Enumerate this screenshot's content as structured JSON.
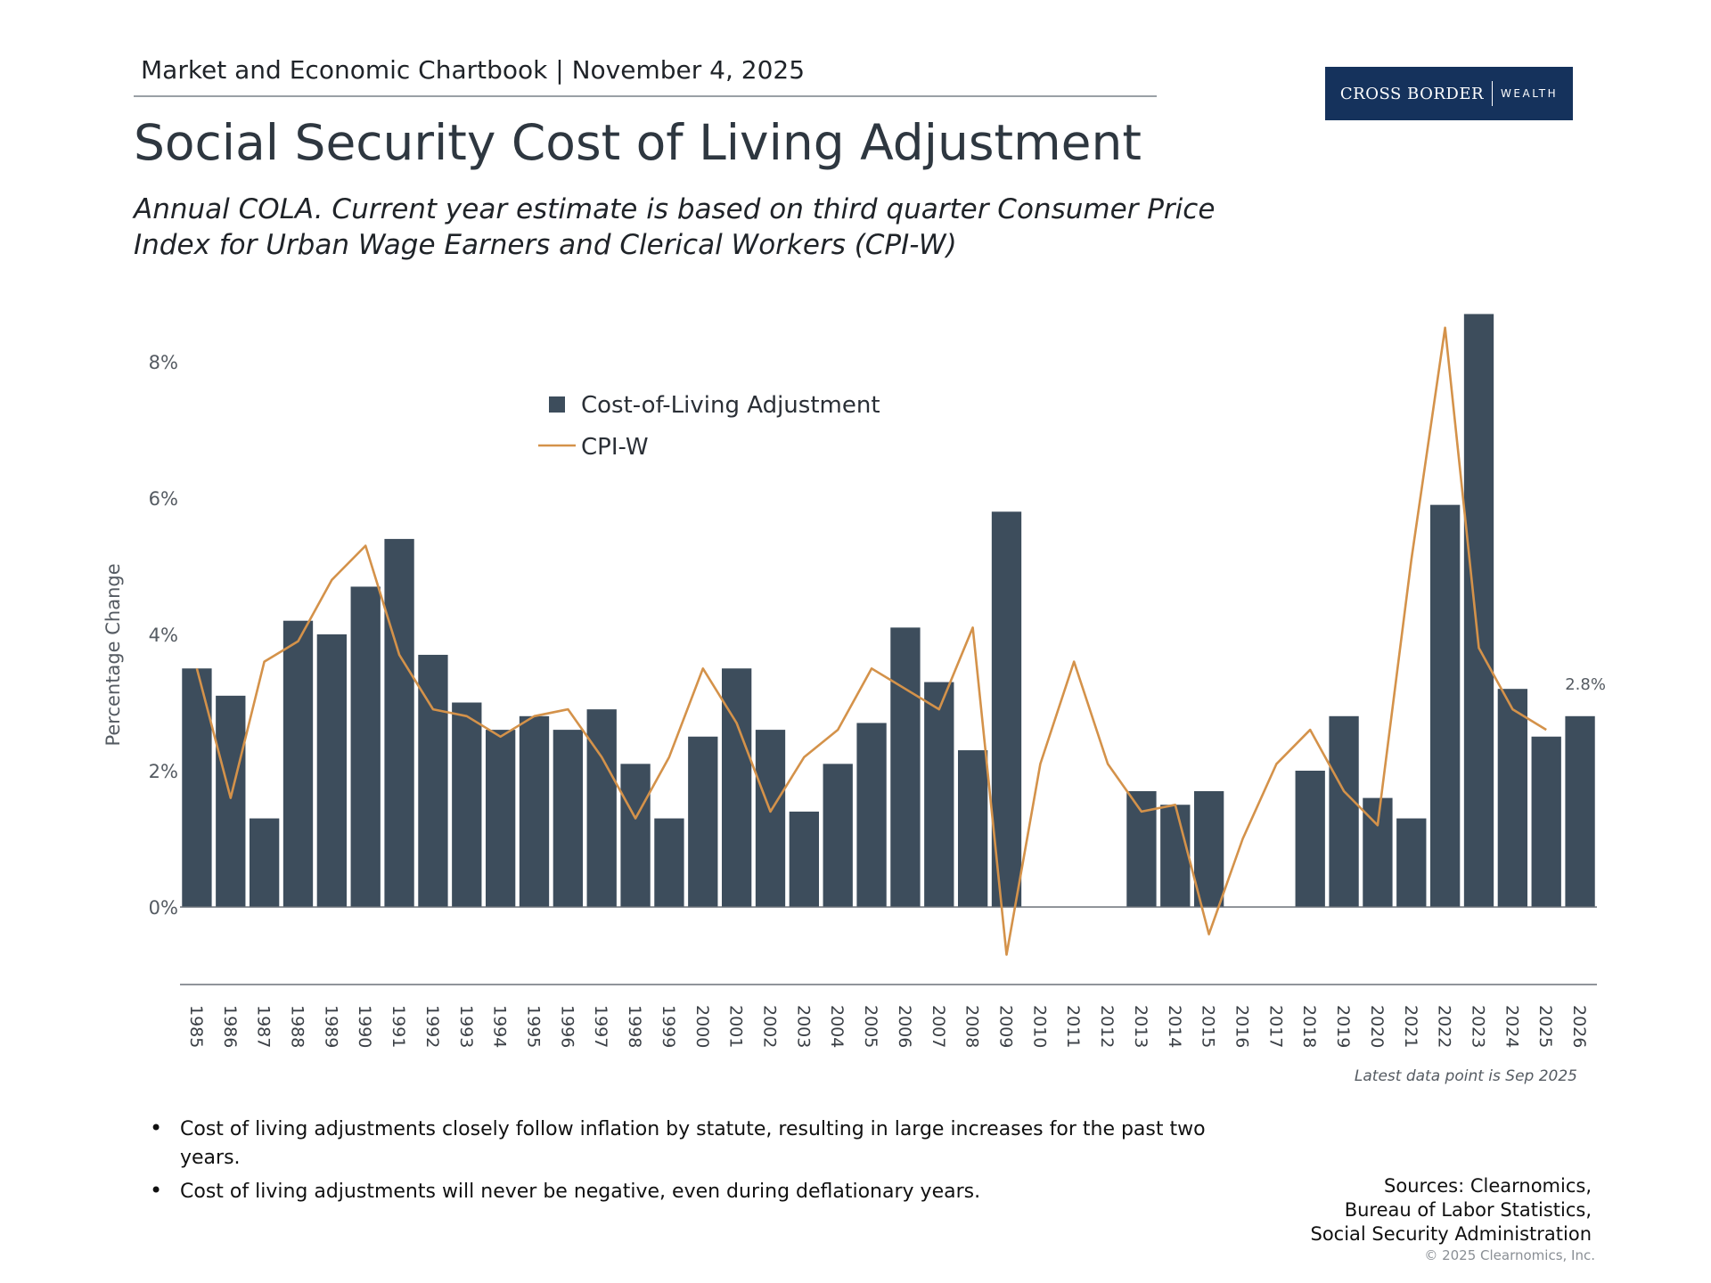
{
  "header": {
    "label": "Market and Economic Chartbook | November 4, 2025"
  },
  "logo": {
    "main": "CROSS BORDER",
    "sub": "WEALTH",
    "color": "#15325c"
  },
  "title": "Social Security Cost of Living Adjustment",
  "subtitle_line1": "Annual COLA. Current year estimate is based on third quarter Consumer Price",
  "subtitle_line2": "Index for Urban Wage Earners and Clerical Workers (CPI-W)",
  "chart_data": {
    "type": "bar",
    "title": "Social Security Cost of Living Adjustment",
    "xlabel": "",
    "ylabel": "Percentage Change",
    "ylim": [
      -1.2,
      8.8
    ],
    "yticks": [
      {
        "value": 0,
        "label": "0%"
      },
      {
        "value": 2,
        "label": "2%"
      },
      {
        "value": 4,
        "label": "4%"
      },
      {
        "value": 6,
        "label": "6%"
      },
      {
        "value": 8,
        "label": "8%"
      }
    ],
    "categories": [
      "1985",
      "1986",
      "1987",
      "1988",
      "1989",
      "1990",
      "1991",
      "1992",
      "1993",
      "1994",
      "1995",
      "1996",
      "1997",
      "1998",
      "1999",
      "2000",
      "2001",
      "2002",
      "2003",
      "2004",
      "2005",
      "2006",
      "2007",
      "2008",
      "2009",
      "2010",
      "2011",
      "2012",
      "2013",
      "2014",
      "2015",
      "2016",
      "2017",
      "2018",
      "2019",
      "2020",
      "2021",
      "2022",
      "2023",
      "2024",
      "2025",
      "2026"
    ],
    "series": [
      {
        "name": "Cost-of-Living Adjustment",
        "type": "bar",
        "color": "#3d4d5c",
        "values": [
          3.5,
          3.1,
          1.3,
          4.2,
          4.0,
          4.7,
          5.4,
          3.7,
          3.0,
          2.6,
          2.8,
          2.6,
          2.9,
          2.1,
          1.3,
          2.5,
          3.5,
          2.6,
          1.4,
          2.1,
          2.7,
          4.1,
          3.3,
          2.3,
          5.8,
          0.0,
          0.0,
          0.0,
          1.7,
          1.5,
          1.7,
          0.0,
          0.0,
          2.0,
          2.8,
          1.6,
          1.3,
          5.9,
          8.7,
          3.2,
          2.5,
          2.8
        ]
      },
      {
        "name": "CPI-W",
        "type": "line",
        "color": "#d4924a",
        "values": [
          3.5,
          1.6,
          3.6,
          3.9,
          4.8,
          5.3,
          3.7,
          2.9,
          2.8,
          2.5,
          2.8,
          2.9,
          2.2,
          1.3,
          2.2,
          3.5,
          2.7,
          1.4,
          2.2,
          2.6,
          3.5,
          3.2,
          2.9,
          4.1,
          -0.7,
          2.1,
          3.6,
          2.1,
          1.4,
          1.5,
          -0.4,
          1.0,
          2.1,
          2.6,
          1.7,
          1.2,
          5.1,
          8.5,
          3.8,
          2.9,
          2.6,
          null
        ]
      }
    ],
    "legend": {
      "position": "top-center"
    },
    "annotations": [
      {
        "text": "2.8%",
        "category": "2026"
      },
      {
        "text": "Latest data point is Sep 2025",
        "position": "bottom-right"
      }
    ]
  },
  "footnote": "Latest data point is Sep 2025",
  "bullets": [
    "Cost of living adjustments closely follow inflation by statute, resulting in large increases for the past two years.",
    "Cost of living adjustments will never be negative, even during deflationary years."
  ],
  "sources": {
    "line1": "Sources: Clearnomics,",
    "line2": "Bureau of Labor Statistics,",
    "line3": "Social Security Administration"
  },
  "copyright": "© 2025 Clearnomics, Inc."
}
